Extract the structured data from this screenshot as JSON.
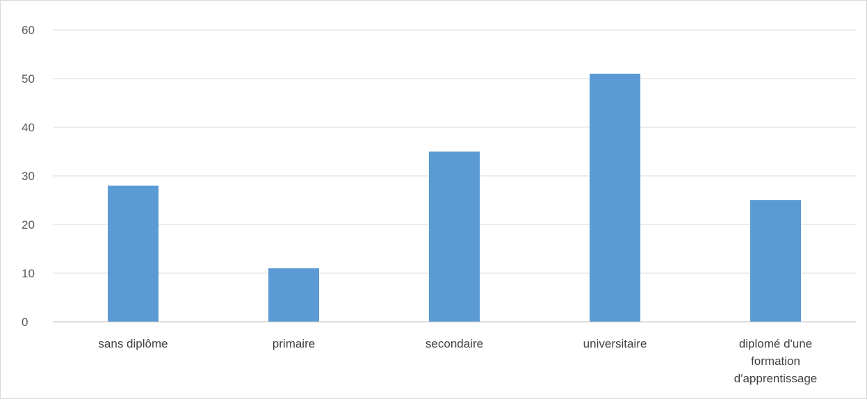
{
  "chart_data": {
    "type": "bar",
    "categories": [
      "sans diplôme",
      "primaire",
      "secondaire",
      "universitaire",
      "diplomé d'une formation d'apprentissage"
    ],
    "category_label_lines": [
      [
        "sans diplôme"
      ],
      [
        "primaire"
      ],
      [
        "secondaire"
      ],
      [
        "universitaire"
      ],
      [
        "diplomé d'une",
        "formation",
        "d'apprentissage"
      ]
    ],
    "values": [
      28,
      11,
      35,
      51,
      25
    ],
    "title": "",
    "xlabel": "",
    "ylabel": "",
    "ylim": [
      0,
      60
    ],
    "yticks": [
      0,
      10,
      20,
      30,
      40,
      50,
      60
    ],
    "grid": true,
    "legend": "none",
    "bar_color": "#5b9bd5"
  }
}
